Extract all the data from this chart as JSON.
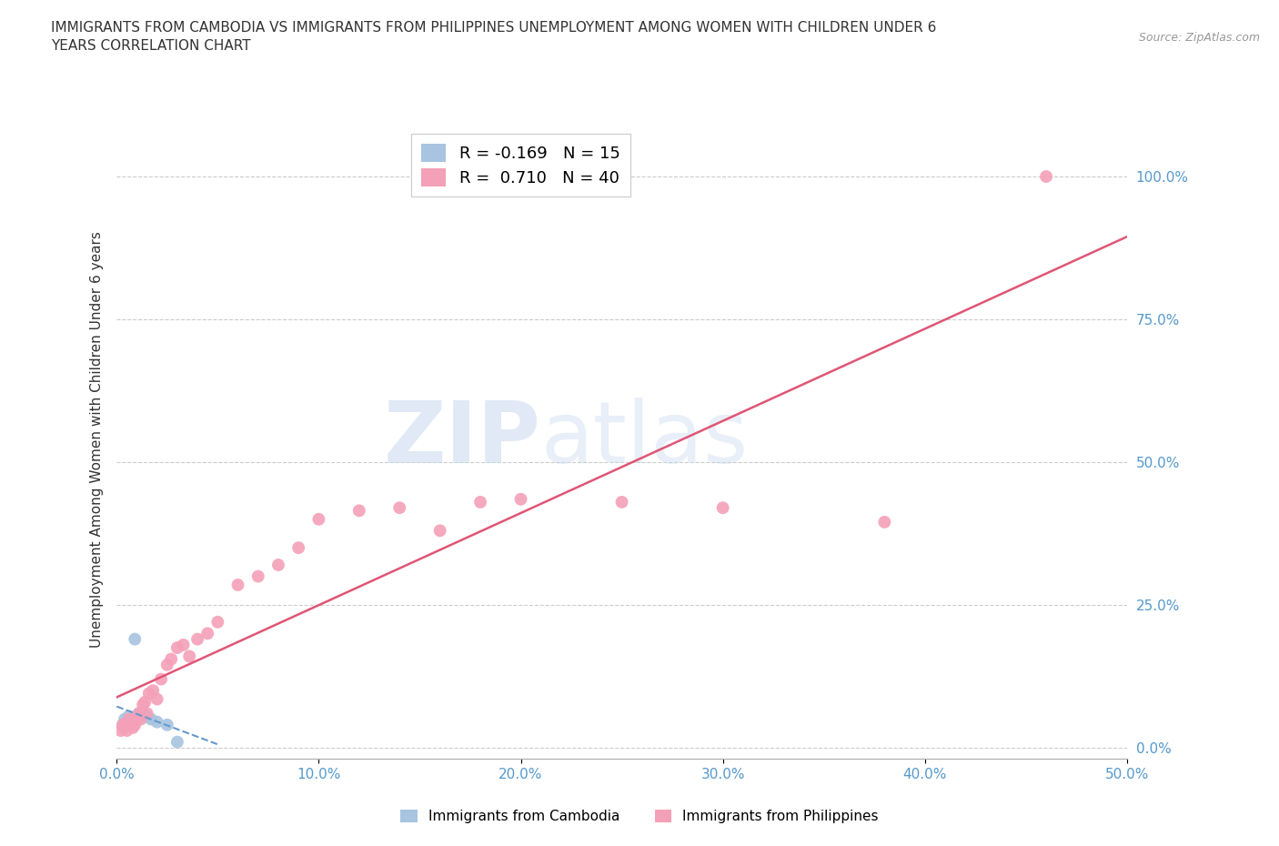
{
  "title": "IMMIGRANTS FROM CAMBODIA VS IMMIGRANTS FROM PHILIPPINES UNEMPLOYMENT AMONG WOMEN WITH CHILDREN UNDER 6\nYEARS CORRELATION CHART",
  "source": "Source: ZipAtlas.com",
  "ylabel": "Unemployment Among Women with Children Under 6 years",
  "xlim": [
    0.0,
    0.5
  ],
  "ylim": [
    -0.02,
    1.1
  ],
  "yticks": [
    0.0,
    0.25,
    0.5,
    0.75,
    1.0
  ],
  "yticklabels": [
    "0.0%",
    "25.0%",
    "50.0%",
    "75.0%",
    "100.0%"
  ],
  "xticks": [
    0.0,
    0.1,
    0.2,
    0.3,
    0.4,
    0.5
  ],
  "xticklabels": [
    "0.0%",
    "10.0%",
    "20.0%",
    "30.0%",
    "40.0%",
    "50.0%"
  ],
  "cambodia_color": "#a8c4e0",
  "philippines_color": "#f4a0b8",
  "cambodia_line_color": "#6699cc",
  "philippines_line_color": "#e05575",
  "cambodia_label": "Immigrants from Cambodia",
  "philippines_label": "Immigrants from Philippines",
  "cambodia_R": -0.169,
  "cambodia_N": 15,
  "philippines_R": 0.71,
  "philippines_N": 40,
  "background_color": "#ffffff",
  "grid_color": "#cccccc",
  "watermark_zip": "ZIP",
  "watermark_atlas": "atlas",
  "cambodia_x": [
    0.003,
    0.004,
    0.005,
    0.006,
    0.007,
    0.008,
    0.009,
    0.01,
    0.011,
    0.013,
    0.015,
    0.017,
    0.02,
    0.025,
    0.03
  ],
  "cambodia_y": [
    0.04,
    0.05,
    0.04,
    0.055,
    0.05,
    0.045,
    0.19,
    0.05,
    0.06,
    0.06,
    0.055,
    0.05,
    0.045,
    0.04,
    0.01
  ],
  "philippines_x": [
    0.002,
    0.003,
    0.004,
    0.005,
    0.006,
    0.007,
    0.008,
    0.009,
    0.01,
    0.011,
    0.012,
    0.013,
    0.014,
    0.015,
    0.016,
    0.018,
    0.02,
    0.022,
    0.025,
    0.027,
    0.03,
    0.033,
    0.036,
    0.04,
    0.045,
    0.05,
    0.06,
    0.07,
    0.08,
    0.09,
    0.1,
    0.12,
    0.14,
    0.16,
    0.18,
    0.2,
    0.25,
    0.3,
    0.38,
    0.46
  ],
  "philippines_y": [
    0.03,
    0.04,
    0.04,
    0.03,
    0.05,
    0.04,
    0.035,
    0.04,
    0.05,
    0.06,
    0.05,
    0.075,
    0.08,
    0.06,
    0.095,
    0.1,
    0.085,
    0.12,
    0.145,
    0.155,
    0.175,
    0.18,
    0.16,
    0.19,
    0.2,
    0.22,
    0.285,
    0.3,
    0.32,
    0.35,
    0.4,
    0.415,
    0.42,
    0.38,
    0.43,
    0.435,
    0.43,
    0.42,
    0.395,
    1.0
  ]
}
